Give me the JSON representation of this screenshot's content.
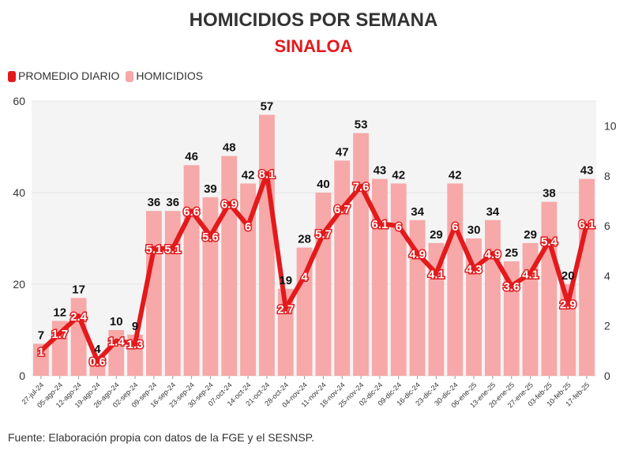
{
  "chart_data": {
    "type": "bar+line",
    "title": "HOMICIDIOS POR SEMANA",
    "subtitle": "SINALOA",
    "categories": [
      "27-jul-24",
      "05-ago-24",
      "12-ago-24",
      "19-ago-24",
      "26-ago-24",
      "02-sep-24",
      "09-sep-24",
      "16-sep-24",
      "23-sep-24",
      "30-sep-24",
      "07-oct-24",
      "14-oct-24",
      "21-oct-24",
      "28-oct-24",
      "04-nov-24",
      "11-nov-24",
      "18-nov-24",
      "25-nov-24",
      "02-dic-24",
      "09-dic-24",
      "16-dic-24",
      "23-dic-24",
      "30-dic-24",
      "06-ene-25",
      "13-ene-25",
      "20-ene-25",
      "27-ene-25",
      "03-feb-25",
      "10-feb-25",
      "17-feb-25"
    ],
    "series": [
      {
        "name": "HOMICIDIOS",
        "type": "bar",
        "axis": "left",
        "color": "#f7a8a8",
        "values": [
          7,
          12,
          17,
          4,
          10,
          9,
          36,
          36,
          46,
          39,
          48,
          42,
          57,
          19,
          28,
          40,
          47,
          53,
          43,
          42,
          34,
          29,
          42,
          30,
          34,
          25,
          29,
          38,
          20,
          43
        ]
      },
      {
        "name": "PROMEDIO DIARIO",
        "type": "line",
        "axis": "right",
        "color": "#e31a1c",
        "values": [
          1,
          1.7,
          2.4,
          0.6,
          1.4,
          1.3,
          5.1,
          5.1,
          6.6,
          5.6,
          6.9,
          6,
          8.1,
          2.7,
          4,
          5.7,
          6.7,
          7.6,
          6.1,
          6,
          4.9,
          4.1,
          6,
          4.3,
          4.9,
          3.6,
          4.1,
          5.4,
          2.9,
          6.1
        ]
      }
    ],
    "ylim_left": [
      0,
      60
    ],
    "yticks_left": [
      0,
      20,
      40,
      60
    ],
    "ylim_right": [
      0,
      11
    ],
    "yticks_right": [
      0,
      2,
      4,
      6,
      8,
      10
    ],
    "legend": [
      "PROMEDIO DIARIO",
      "HOMICIDIOS"
    ],
    "legend_position": "top-left",
    "grid": true
  },
  "source": "Fuente: Elaboración propia con datos de la FGE y el SESNSP."
}
